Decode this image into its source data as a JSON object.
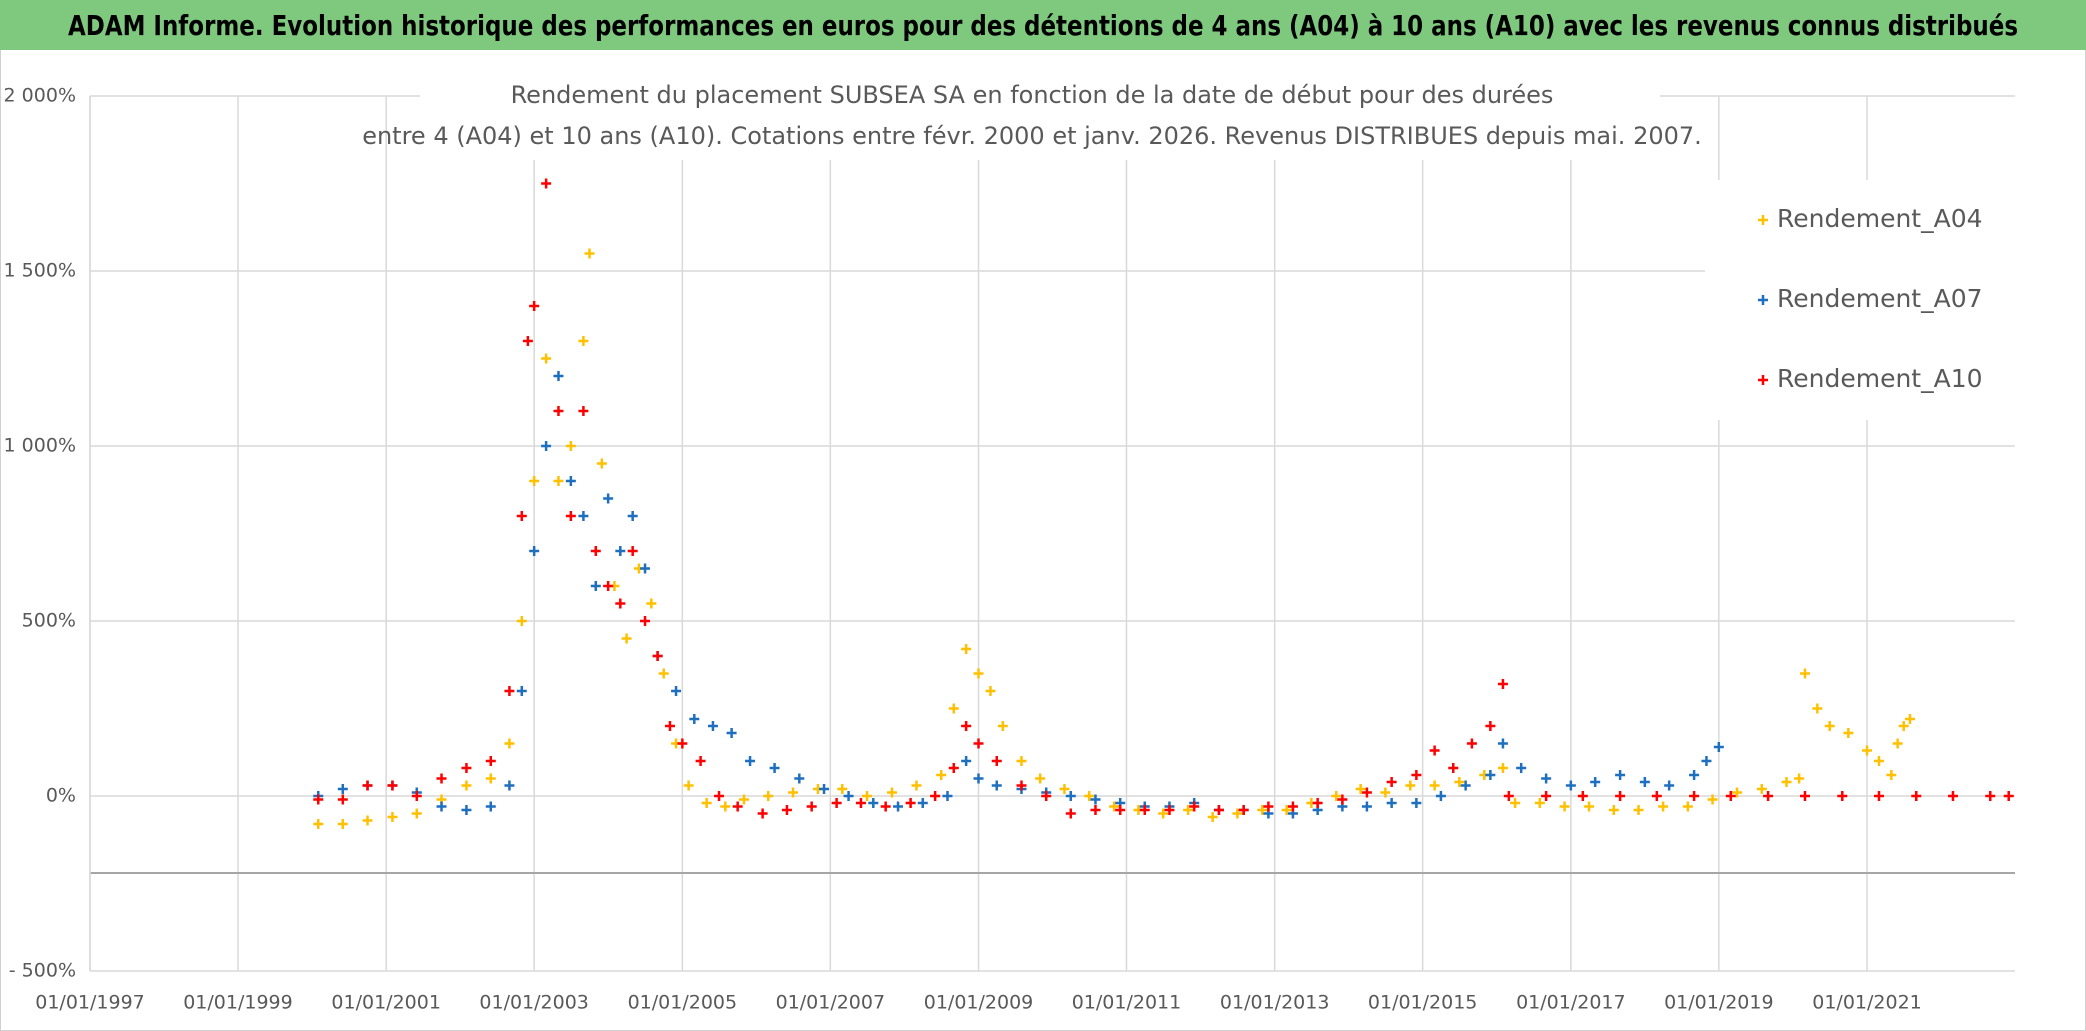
{
  "header": {
    "title": "ADAM Informe. Evolution historique des performances en euros pour des détentions de 4 ans (A04) à 10 ans (A10) avec les revenus connus distribués"
  },
  "chart_data": {
    "type": "scatter",
    "title": [
      "Rendement du placement SUBSEA SA en fonction de la date de début pour des durées",
      "entre 4 (A04) et 10 ans (A10). Cotations entre févr. 2000 et janv. 2026. Revenus DISTRIBUES depuis mai. 2007."
    ],
    "xlim": [
      "01/01/1997",
      "01/01/2023"
    ],
    "xticks": [
      "01/01/1997",
      "01/01/1999",
      "01/01/2001",
      "01/01/2003",
      "01/01/2005",
      "01/01/2007",
      "01/01/2009",
      "01/01/2011",
      "01/01/2013",
      "01/01/2015",
      "01/01/2017",
      "01/01/2019",
      "01/01/2021"
    ],
    "ylim": [
      -500,
      2000
    ],
    "yticks": [
      {
        "value": -500,
        "label": "- 500%"
      },
      {
        "value": 0,
        "label": "0%"
      },
      {
        "value": 500,
        "label": "500%"
      },
      {
        "value": 1000,
        "label": "1 000%"
      },
      {
        "value": 1500,
        "label": "1 500%"
      },
      {
        "value": 2000,
        "label": "2 000%"
      }
    ],
    "x_axis_at": -220,
    "grid": true,
    "legend": "top-right",
    "series": [
      {
        "name": "Rendement_A04",
        "color": "#ffc000",
        "x": [
          "01/02/2000",
          "01/06/2000",
          "01/10/2000",
          "01/02/2001",
          "01/06/2001",
          "01/10/2001",
          "01/02/2002",
          "01/06/2002",
          "01/09/2002",
          "01/11/2002",
          "01/01/2003",
          "01/03/2003",
          "01/05/2003",
          "01/07/2003",
          "01/09/2003",
          "01/10/2003",
          "01/12/2003",
          "01/02/2004",
          "01/04/2004",
          "01/06/2004",
          "01/08/2004",
          "01/10/2004",
          "01/12/2004",
          "01/02/2005",
          "01/05/2005",
          "01/08/2005",
          "01/11/2005",
          "01/03/2006",
          "01/07/2006",
          "01/11/2006",
          "01/03/2007",
          "01/07/2007",
          "01/11/2007",
          "01/03/2008",
          "01/07/2008",
          "01/09/2008",
          "01/11/2008",
          "01/01/2009",
          "01/03/2009",
          "01/05/2009",
          "01/08/2009",
          "01/11/2009",
          "01/03/2010",
          "01/07/2010",
          "01/11/2010",
          "01/03/2011",
          "01/07/2011",
          "01/11/2011",
          "01/03/2012",
          "01/07/2012",
          "01/11/2012",
          "01/03/2013",
          "01/07/2013",
          "01/11/2013",
          "01/03/2014",
          "01/07/2014",
          "01/11/2014",
          "01/03/2015",
          "01/07/2015",
          "01/11/2015",
          "01/02/2016",
          "01/04/2016",
          "01/08/2016",
          "01/12/2016",
          "01/04/2017",
          "01/08/2017",
          "01/12/2017",
          "01/04/2018",
          "01/08/2018",
          "01/12/2018",
          "01/04/2019",
          "01/08/2019",
          "01/12/2019",
          "01/02/2020",
          "01/03/2020",
          "01/05/2020",
          "01/07/2020",
          "01/10/2020",
          "01/01/2021",
          "01/03/2021",
          "01/05/2021",
          "01/06/2021",
          "01/07/2021",
          "01/08/2021"
        ],
        "values": [
          -80,
          -80,
          -70,
          -60,
          -50,
          -10,
          30,
          50,
          150,
          500,
          900,
          1250,
          900,
          1000,
          1300,
          1550,
          950,
          600,
          450,
          650,
          550,
          350,
          150,
          30,
          -20,
          -30,
          -10,
          0,
          10,
          20,
          20,
          0,
          10,
          30,
          60,
          250,
          420,
          350,
          300,
          200,
          100,
          50,
          20,
          0,
          -30,
          -40,
          -50,
          -40,
          -60,
          -50,
          -40,
          -40,
          -20,
          0,
          20,
          10,
          30,
          30,
          40,
          60,
          80,
          -20,
          -20,
          -30,
          -30,
          -40,
          -40,
          -30,
          -30,
          -10,
          10,
          20,
          40,
          50,
          350,
          250,
          200,
          180,
          130,
          100,
          60,
          150,
          200,
          220
        ]
      },
      {
        "name": "Rendement_A07",
        "color": "#1f6fbf",
        "x": [
          "01/02/2000",
          "01/06/2000",
          "01/10/2000",
          "01/02/2001",
          "01/06/2001",
          "01/10/2001",
          "01/02/2002",
          "01/06/2002",
          "01/09/2002",
          "01/11/2002",
          "01/01/2003",
          "01/03/2003",
          "01/05/2003",
          "01/07/2003",
          "01/09/2003",
          "01/11/2003",
          "01/01/2004",
          "01/03/2004",
          "01/05/2004",
          "01/07/2004",
          "01/09/2004",
          "01/12/2004",
          "01/03/2005",
          "01/06/2005",
          "01/09/2005",
          "01/12/2005",
          "01/04/2006",
          "01/08/2006",
          "01/12/2006",
          "01/04/2007",
          "01/08/2007",
          "01/12/2007",
          "01/04/2008",
          "01/08/2008",
          "01/11/2008",
          "01/01/2009",
          "01/04/2009",
          "01/08/2009",
          "01/12/2009",
          "01/04/2010",
          "01/08/2010",
          "01/12/2010",
          "01/04/2011",
          "01/08/2011",
          "01/12/2011",
          "01/04/2012",
          "01/08/2012",
          "01/12/2012",
          "01/04/2013",
          "01/08/2013",
          "01/12/2013",
          "01/04/2014",
          "01/08/2014",
          "01/12/2014",
          "01/04/2015",
          "01/08/2015",
          "01/12/2015",
          "01/02/2016",
          "01/05/2016",
          "01/09/2016",
          "01/01/2017",
          "01/05/2017",
          "01/09/2017",
          "01/01/2018",
          "01/05/2018",
          "01/09/2018",
          "01/11/2018",
          "01/01/2019"
        ],
        "values": [
          0,
          20,
          30,
          30,
          10,
          -30,
          -40,
          -30,
          30,
          300,
          700,
          1000,
          1200,
          900,
          800,
          600,
          850,
          700,
          800,
          650,
          400,
          300,
          220,
          200,
          180,
          100,
          80,
          50,
          20,
          0,
          -20,
          -30,
          -20,
          0,
          100,
          50,
          30,
          20,
          10,
          0,
          -10,
          -20,
          -30,
          -30,
          -20,
          -40,
          -40,
          -50,
          -50,
          -40,
          -30,
          -30,
          -20,
          -20,
          0,
          30,
          60,
          150,
          80,
          50,
          30,
          40,
          60,
          40,
          30,
          60,
          100,
          140
        ]
      },
      {
        "name": "Rendement_A10",
        "color": "#ff0000",
        "x": [
          "01/02/2000",
          "01/06/2000",
          "01/10/2000",
          "01/02/2001",
          "01/06/2001",
          "01/10/2001",
          "01/02/2002",
          "01/06/2002",
          "01/09/2002",
          "01/11/2002",
          "01/12/2002",
          "01/01/2003",
          "01/03/2003",
          "01/05/2003",
          "01/07/2003",
          "01/09/2003",
          "01/11/2003",
          "01/01/2004",
          "01/03/2004",
          "01/05/2004",
          "01/07/2004",
          "01/09/2004",
          "01/11/2004",
          "01/01/2005",
          "01/04/2005",
          "01/07/2005",
          "01/10/2005",
          "01/02/2006",
          "01/06/2006",
          "01/10/2006",
          "01/02/2007",
          "01/06/2007",
          "01/10/2007",
          "01/02/2008",
          "01/06/2008",
          "01/09/2008",
          "01/11/2008",
          "01/01/2009",
          "01/04/2009",
          "01/08/2009",
          "01/12/2009",
          "01/04/2010",
          "01/08/2010",
          "01/12/2010",
          "01/04/2011",
          "01/08/2011",
          "01/12/2011",
          "01/04/2012",
          "01/08/2012",
          "01/12/2012",
          "01/04/2013",
          "01/08/2013",
          "01/12/2013",
          "01/04/2014",
          "01/08/2014",
          "01/12/2014",
          "01/03/2015",
          "01/06/2015",
          "01/09/2015",
          "01/12/2015",
          "01/02/2016",
          "01/03/2016",
          "01/09/2016",
          "01/03/2017",
          "01/09/2017",
          "01/03/2018",
          "01/09/2018",
          "01/03/2019",
          "01/09/2019",
          "01/03/2020",
          "01/09/2020",
          "01/03/2021",
          "01/09/2021",
          "01/03/2022",
          "01/09/2022",
          "01/12/2022"
        ],
        "values": [
          -10,
          -10,
          30,
          30,
          0,
          50,
          80,
          100,
          300,
          800,
          1300,
          1400,
          1750,
          1100,
          800,
          1100,
          700,
          600,
          550,
          700,
          500,
          400,
          200,
          150,
          100,
          0,
          -30,
          -50,
          -40,
          -30,
          -20,
          -20,
          -30,
          -20,
          0,
          80,
          200,
          150,
          100,
          30,
          0,
          -50,
          -40,
          -40,
          -40,
          -40,
          -30,
          -40,
          -40,
          -30,
          -30,
          -20,
          -10,
          10,
          40,
          60,
          130,
          80,
          150,
          200,
          320,
          0,
          0,
          0,
          0,
          0,
          0,
          0,
          0,
          0,
          0,
          0,
          0,
          0,
          0,
          0
        ]
      }
    ]
  }
}
